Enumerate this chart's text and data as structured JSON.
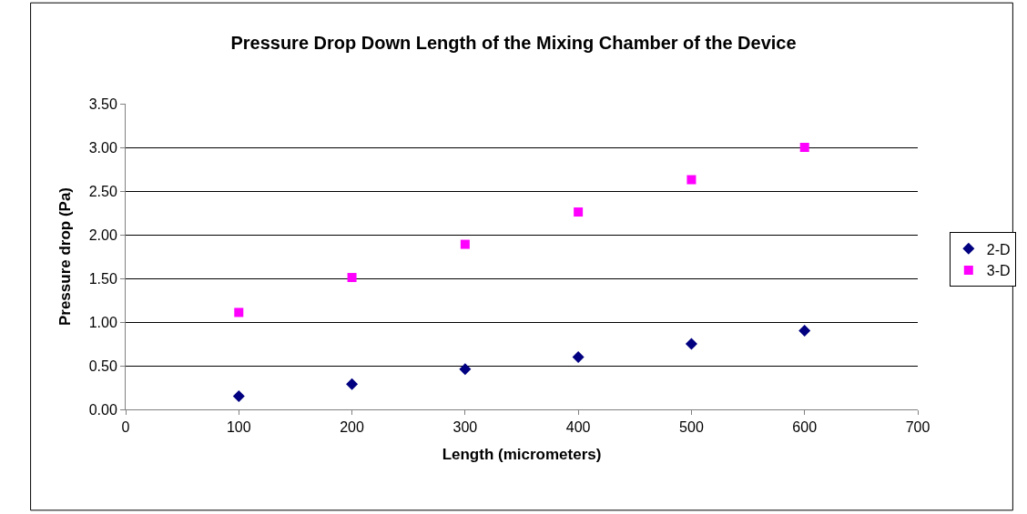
{
  "chart_data": {
    "type": "scatter",
    "title": "Pressure Drop Down Length of the Mixing Chamber of the Device",
    "xlabel": "Length (micrometers)",
    "ylabel": "Pressure drop (Pa)",
    "x": [
      100,
      200,
      300,
      400,
      500,
      600
    ],
    "series": [
      {
        "name": "2-D",
        "color": "#000080",
        "marker": "diamond",
        "values": [
          0.15,
          0.29,
          0.46,
          0.6,
          0.75,
          0.9
        ]
      },
      {
        "name": "3-D",
        "color": "#ff00ff",
        "marker": "square",
        "values": [
          1.11,
          1.51,
          1.89,
          2.26,
          2.63,
          3.0
        ]
      }
    ],
    "xlim": [
      0,
      700
    ],
    "xticks": [
      0,
      100,
      200,
      300,
      400,
      500,
      600,
      700
    ],
    "ylim": [
      0,
      3.5
    ],
    "yticks": [
      {
        "value": 0,
        "label": "0.00"
      },
      {
        "value": 0.5,
        "label": "0.50"
      },
      {
        "value": 1,
        "label": "1.00"
      },
      {
        "value": 1.5,
        "label": "1.50"
      },
      {
        "value": 2,
        "label": "2.00"
      },
      {
        "value": 2.5,
        "label": "2.50"
      },
      {
        "value": 3,
        "label": "3.00"
      },
      {
        "value": 3.5,
        "label": "3.50"
      }
    ],
    "grid": "y",
    "legend": "right"
  }
}
